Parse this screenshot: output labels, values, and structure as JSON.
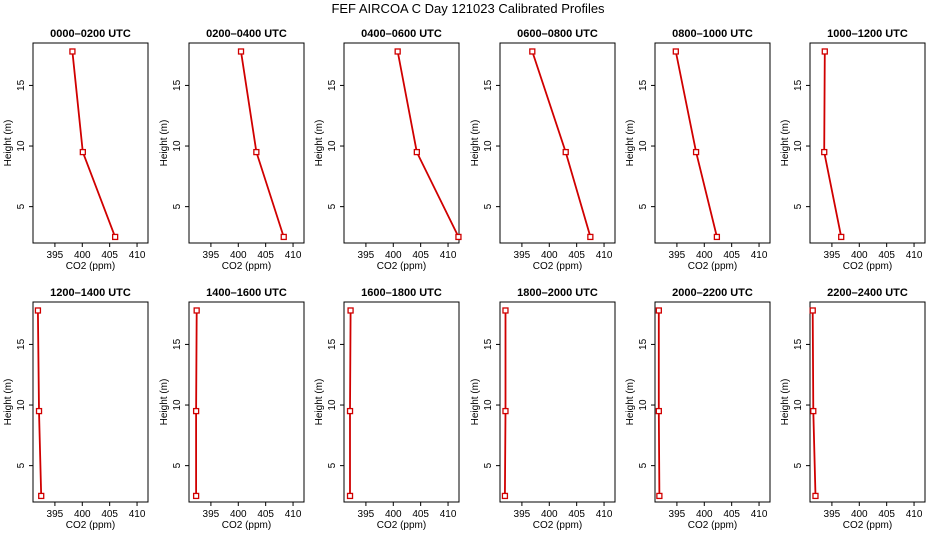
{
  "figure": {
    "title": "FEF AIRCOA C  Day 121023  Calibrated Profiles",
    "line_color": "#d00000"
  },
  "chart_data": [
    {
      "type": "line",
      "title": "0000–0200 UTC",
      "xlabel": "CO2 (ppm)",
      "ylabel": "Height (m)",
      "xlim": [
        391,
        412
      ],
      "ylim": [
        2,
        18.5
      ],
      "xticks": [
        395,
        400,
        405,
        410
      ],
      "yticks": [
        5,
        10,
        15
      ],
      "series": [
        {
          "x": [
            406.0,
            400.1,
            398.2
          ],
          "y": [
            2.5,
            9.5,
            17.8
          ]
        }
      ]
    },
    {
      "type": "line",
      "title": "0200–0400 UTC",
      "xlabel": "CO2 (ppm)",
      "ylabel": "Height (m)",
      "xlim": [
        391,
        412
      ],
      "ylim": [
        2,
        18.5
      ],
      "xticks": [
        395,
        400,
        405,
        410
      ],
      "yticks": [
        5,
        10,
        15
      ],
      "series": [
        {
          "x": [
            408.3,
            403.3,
            400.5
          ],
          "y": [
            2.5,
            9.5,
            17.8
          ]
        }
      ]
    },
    {
      "type": "line",
      "title": "0400–0600 UTC",
      "xlabel": "CO2 (ppm)",
      "ylabel": "Height (m)",
      "xlim": [
        391,
        412
      ],
      "ylim": [
        2,
        18.5
      ],
      "xticks": [
        395,
        400,
        405,
        410
      ],
      "yticks": [
        5,
        10,
        15
      ],
      "series": [
        {
          "x": [
            411.9,
            404.3,
            400.8
          ],
          "y": [
            2.5,
            9.5,
            17.8
          ]
        }
      ]
    },
    {
      "type": "line",
      "title": "0600–0800 UTC",
      "xlabel": "CO2 (ppm)",
      "ylabel": "Height (m)",
      "xlim": [
        391,
        412
      ],
      "ylim": [
        2,
        18.5
      ],
      "xticks": [
        395,
        400,
        405,
        410
      ],
      "yticks": [
        5,
        10,
        15
      ],
      "series": [
        {
          "x": [
            407.5,
            403.0,
            396.9
          ],
          "y": [
            2.5,
            9.5,
            17.8
          ]
        }
      ]
    },
    {
      "type": "line",
      "title": "0800–1000 UTC",
      "xlabel": "CO2 (ppm)",
      "ylabel": "Height (m)",
      "xlim": [
        391,
        412
      ],
      "ylim": [
        2,
        18.5
      ],
      "xticks": [
        395,
        400,
        405,
        410
      ],
      "yticks": [
        5,
        10,
        15
      ],
      "series": [
        {
          "x": [
            402.3,
            398.5,
            394.8
          ],
          "y": [
            2.5,
            9.5,
            17.8
          ]
        }
      ]
    },
    {
      "type": "line",
      "title": "1000–1200 UTC",
      "xlabel": "CO2 (ppm)",
      "ylabel": "Height (m)",
      "xlim": [
        391,
        412
      ],
      "ylim": [
        2,
        18.5
      ],
      "xticks": [
        395,
        400,
        405,
        410
      ],
      "yticks": [
        5,
        10,
        15
      ],
      "series": [
        {
          "x": [
            396.7,
            393.6,
            393.7
          ],
          "y": [
            2.5,
            9.5,
            17.8
          ]
        }
      ]
    },
    {
      "type": "line",
      "title": "1200–1400 UTC",
      "xlabel": "CO2 (ppm)",
      "ylabel": "Height (m)",
      "xlim": [
        391,
        412
      ],
      "ylim": [
        2,
        18.5
      ],
      "xticks": [
        395,
        400,
        405,
        410
      ],
      "yticks": [
        5,
        10,
        15
      ],
      "series": [
        {
          "x": [
            392.5,
            392.1,
            391.9
          ],
          "y": [
            2.5,
            9.5,
            17.8
          ]
        }
      ]
    },
    {
      "type": "line",
      "title": "1400–1600 UTC",
      "xlabel": "CO2 (ppm)",
      "ylabel": "Height (m)",
      "xlim": [
        391,
        412
      ],
      "ylim": [
        2,
        18.5
      ],
      "xticks": [
        395,
        400,
        405,
        410
      ],
      "yticks": [
        5,
        10,
        15
      ],
      "series": [
        {
          "x": [
            392.3,
            392.3,
            392.4
          ],
          "y": [
            2.5,
            9.5,
            17.8
          ]
        }
      ]
    },
    {
      "type": "line",
      "title": "1600–1800 UTC",
      "xlabel": "CO2 (ppm)",
      "ylabel": "Height (m)",
      "xlim": [
        391,
        412
      ],
      "ylim": [
        2,
        18.5
      ],
      "xticks": [
        395,
        400,
        405,
        410
      ],
      "yticks": [
        5,
        10,
        15
      ],
      "series": [
        {
          "x": [
            392.1,
            392.1,
            392.2
          ],
          "y": [
            2.5,
            9.5,
            17.8
          ]
        }
      ]
    },
    {
      "type": "line",
      "title": "1800–2000 UTC",
      "xlabel": "CO2 (ppm)",
      "ylabel": "Height (m)",
      "xlim": [
        391,
        412
      ],
      "ylim": [
        2,
        18.5
      ],
      "xticks": [
        395,
        400,
        405,
        410
      ],
      "yticks": [
        5,
        10,
        15
      ],
      "series": [
        {
          "x": [
            391.9,
            392.0,
            392.0
          ],
          "y": [
            2.5,
            9.5,
            17.8
          ]
        }
      ]
    },
    {
      "type": "line",
      "title": "2000–2200 UTC",
      "xlabel": "CO2 (ppm)",
      "ylabel": "Height (m)",
      "xlim": [
        391,
        412
      ],
      "ylim": [
        2,
        18.5
      ],
      "xticks": [
        395,
        400,
        405,
        410
      ],
      "yticks": [
        5,
        10,
        15
      ],
      "series": [
        {
          "x": [
            391.8,
            391.7,
            391.7
          ],
          "y": [
            2.5,
            9.5,
            17.8
          ]
        }
      ]
    },
    {
      "type": "line",
      "title": "2200–2400 UTC",
      "xlabel": "CO2 (ppm)",
      "ylabel": "Height (m)",
      "xlim": [
        391,
        412
      ],
      "ylim": [
        2,
        18.5
      ],
      "xticks": [
        395,
        400,
        405,
        410
      ],
      "yticks": [
        5,
        10,
        15
      ],
      "series": [
        {
          "x": [
            392.0,
            391.6,
            391.5
          ],
          "y": [
            2.5,
            9.5,
            17.8
          ]
        }
      ]
    }
  ]
}
